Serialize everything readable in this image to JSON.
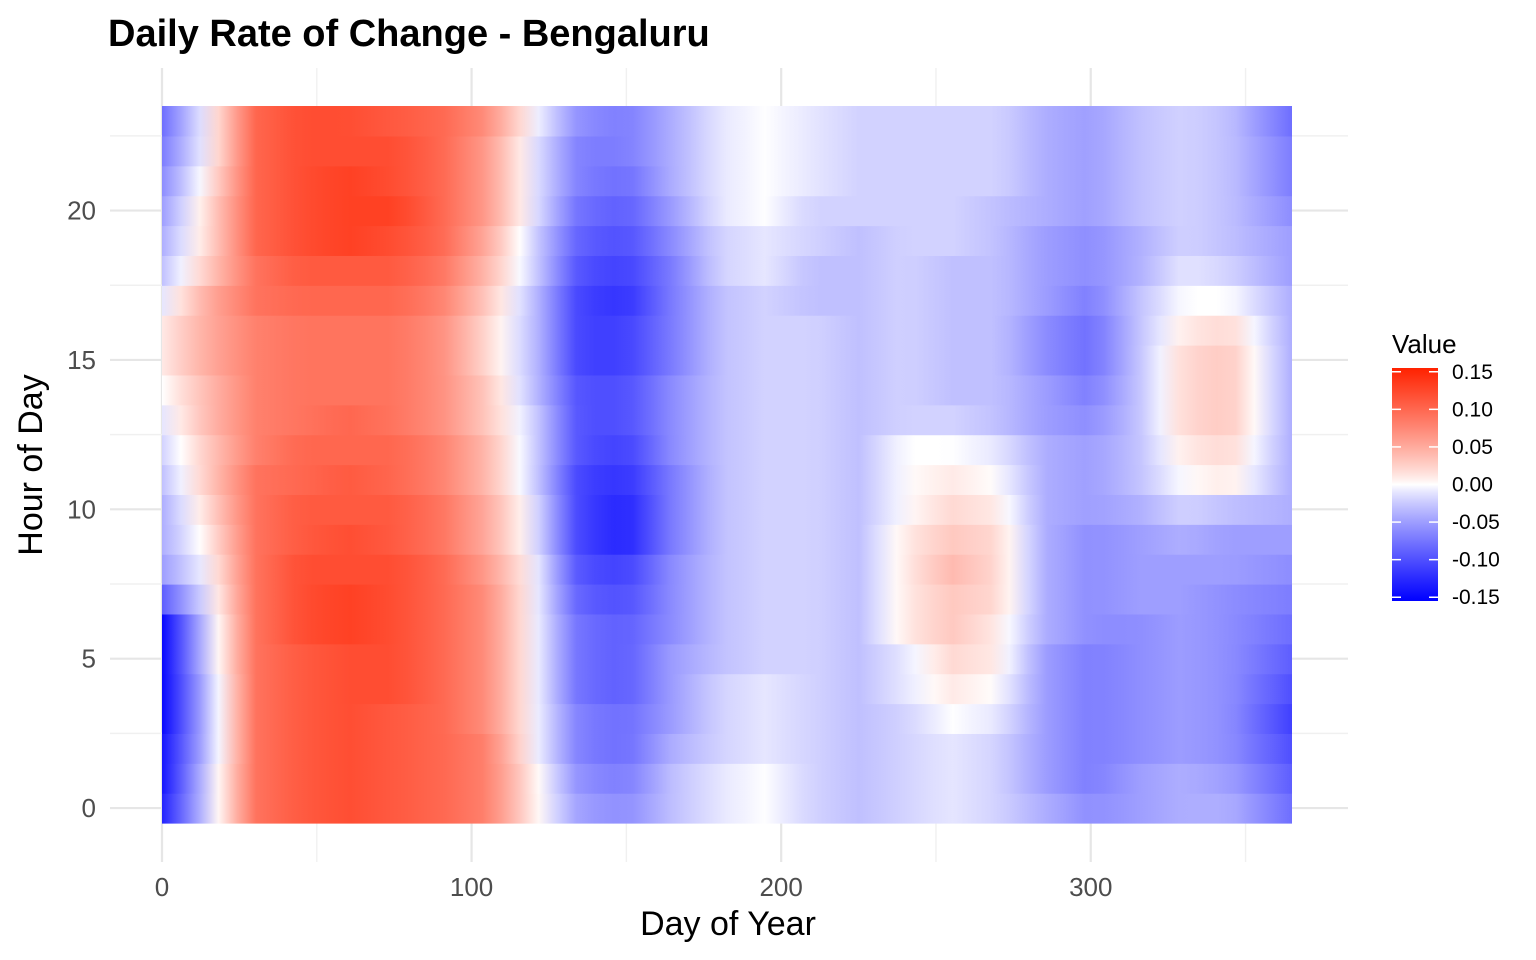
{
  "chart_data": {
    "type": "heatmap",
    "title": "Daily Rate of Change - Bengaluru",
    "xlabel": "Day of Year",
    "ylabel": "Hour of Day",
    "xlim": [
      0,
      365
    ],
    "ylim": [
      0,
      23
    ],
    "x_ticks": [
      "0",
      "100",
      "200",
      "300"
    ],
    "x_tick_values": [
      0,
      100,
      200,
      300
    ],
    "y_ticks": [
      "0",
      "5",
      "10",
      "15",
      "20"
    ],
    "y_tick_values": [
      0,
      5,
      10,
      15,
      20
    ],
    "grid": true,
    "hours": [
      0,
      1,
      2,
      3,
      4,
      5,
      6,
      7,
      8,
      9,
      10,
      11,
      12,
      13,
      14,
      15,
      16,
      17,
      18,
      19,
      20,
      21,
      22,
      23
    ],
    "day_step": 15,
    "days": [
      0,
      15,
      30,
      45,
      60,
      75,
      90,
      105,
      120,
      135,
      150,
      165,
      180,
      195,
      210,
      225,
      240,
      255,
      270,
      285,
      300,
      315,
      330,
      345,
      365
    ],
    "values": [
      [
        -0.13,
        -0.02,
        0.09,
        0.11,
        0.12,
        0.11,
        0.1,
        0.08,
        0.01,
        -0.05,
        -0.06,
        -0.03,
        -0.01,
        0.0,
        -0.02,
        -0.03,
        -0.02,
        -0.01,
        -0.02,
        -0.04,
        -0.06,
        -0.05,
        -0.04,
        -0.04,
        -0.08
      ],
      [
        -0.14,
        -0.02,
        0.09,
        0.11,
        0.12,
        0.11,
        0.1,
        0.08,
        0.01,
        -0.06,
        -0.07,
        -0.03,
        -0.01,
        0.0,
        -0.02,
        -0.03,
        -0.02,
        -0.01,
        -0.02,
        -0.05,
        -0.07,
        -0.05,
        -0.04,
        -0.05,
        -0.09
      ],
      [
        -0.14,
        -0.03,
        0.09,
        0.11,
        0.12,
        0.11,
        0.1,
        0.08,
        0.0,
        -0.07,
        -0.08,
        -0.04,
        -0.02,
        -0.01,
        -0.02,
        -0.03,
        -0.02,
        -0.01,
        -0.02,
        -0.05,
        -0.07,
        -0.06,
        -0.05,
        -0.06,
        -0.1
      ],
      [
        -0.15,
        -0.03,
        0.09,
        0.11,
        0.12,
        0.11,
        0.1,
        0.07,
        0.0,
        -0.07,
        -0.08,
        -0.05,
        -0.02,
        -0.01,
        -0.02,
        -0.03,
        -0.02,
        0.0,
        -0.01,
        -0.05,
        -0.07,
        -0.06,
        -0.05,
        -0.06,
        -0.11
      ],
      [
        -0.15,
        -0.03,
        0.09,
        0.11,
        0.12,
        0.12,
        0.1,
        0.07,
        0.0,
        -0.08,
        -0.09,
        -0.05,
        -0.02,
        -0.01,
        -0.02,
        -0.03,
        -0.01,
        0.01,
        0.0,
        -0.05,
        -0.07,
        -0.06,
        -0.05,
        -0.06,
        -0.1
      ],
      [
        -0.15,
        -0.02,
        0.09,
        0.11,
        0.12,
        0.12,
        0.1,
        0.07,
        0.0,
        -0.08,
        -0.09,
        -0.05,
        -0.03,
        -0.02,
        -0.02,
        -0.03,
        -0.01,
        0.02,
        0.01,
        -0.05,
        -0.07,
        -0.06,
        -0.05,
        -0.06,
        -0.09
      ],
      [
        -0.15,
        -0.02,
        0.09,
        0.12,
        0.13,
        0.12,
        0.1,
        0.07,
        0.0,
        -0.08,
        -0.09,
        -0.06,
        -0.03,
        -0.02,
        -0.02,
        -0.03,
        0.01,
        0.03,
        0.01,
        -0.04,
        -0.06,
        -0.06,
        -0.05,
        -0.06,
        -0.08
      ],
      [
        -0.09,
        -0.01,
        0.09,
        0.12,
        0.13,
        0.12,
        0.1,
        0.07,
        0.0,
        -0.09,
        -0.1,
        -0.06,
        -0.03,
        -0.02,
        -0.02,
        -0.03,
        0.01,
        0.03,
        0.02,
        -0.04,
        -0.06,
        -0.05,
        -0.05,
        -0.06,
        -0.07
      ],
      [
        -0.05,
        0.0,
        0.09,
        0.12,
        0.12,
        0.12,
        0.1,
        0.06,
        0.0,
        -0.1,
        -0.11,
        -0.06,
        -0.03,
        -0.02,
        -0.02,
        -0.03,
        0.01,
        0.04,
        0.02,
        -0.04,
        -0.06,
        -0.05,
        -0.05,
        -0.05,
        -0.06
      ],
      [
        -0.04,
        0.01,
        0.09,
        0.11,
        0.12,
        0.11,
        0.09,
        0.05,
        -0.01,
        -0.11,
        -0.13,
        -0.07,
        -0.03,
        -0.02,
        -0.02,
        -0.03,
        0.01,
        0.03,
        0.02,
        -0.04,
        -0.06,
        -0.05,
        -0.04,
        -0.05,
        -0.05
      ],
      [
        -0.04,
        0.02,
        0.09,
        0.11,
        0.11,
        0.11,
        0.09,
        0.05,
        -0.01,
        -0.11,
        -0.13,
        -0.07,
        -0.03,
        -0.02,
        -0.02,
        -0.03,
        0.0,
        0.02,
        0.01,
        -0.04,
        -0.05,
        -0.04,
        -0.02,
        -0.03,
        -0.04
      ],
      [
        -0.03,
        0.03,
        0.09,
        0.1,
        0.11,
        0.1,
        0.08,
        0.04,
        -0.02,
        -0.11,
        -0.12,
        -0.07,
        -0.03,
        -0.02,
        -0.02,
        -0.03,
        0.0,
        0.01,
        0.0,
        -0.04,
        -0.05,
        -0.03,
        0.0,
        0.01,
        -0.04
      ],
      [
        -0.02,
        0.03,
        0.08,
        0.1,
        0.1,
        0.1,
        0.08,
        0.04,
        -0.02,
        -0.1,
        -0.11,
        -0.06,
        -0.03,
        -0.02,
        -0.02,
        -0.03,
        0.0,
        0.0,
        -0.01,
        -0.04,
        -0.05,
        -0.03,
        0.01,
        0.02,
        -0.04
      ],
      [
        -0.01,
        0.04,
        0.08,
        0.09,
        0.1,
        0.09,
        0.07,
        0.03,
        -0.02,
        -0.1,
        -0.1,
        -0.06,
        -0.03,
        -0.02,
        -0.02,
        -0.03,
        -0.02,
        -0.02,
        -0.03,
        -0.05,
        -0.06,
        -0.03,
        0.02,
        0.03,
        -0.04
      ],
      [
        0.0,
        0.04,
        0.08,
        0.09,
        0.09,
        0.09,
        0.07,
        0.03,
        -0.03,
        -0.1,
        -0.1,
        -0.06,
        -0.03,
        -0.02,
        -0.02,
        -0.03,
        -0.02,
        -0.03,
        -0.03,
        -0.05,
        -0.07,
        -0.03,
        0.02,
        0.03,
        -0.04
      ],
      [
        0.01,
        0.05,
        0.08,
        0.09,
        0.09,
        0.09,
        0.07,
        0.02,
        -0.03,
        -0.11,
        -0.11,
        -0.07,
        -0.03,
        -0.02,
        -0.02,
        -0.03,
        -0.02,
        -0.03,
        -0.03,
        -0.06,
        -0.08,
        -0.03,
        0.02,
        0.03,
        -0.04
      ],
      [
        0.01,
        0.05,
        0.08,
        0.09,
        0.09,
        0.09,
        0.07,
        0.02,
        -0.03,
        -0.11,
        -0.11,
        -0.07,
        -0.03,
        -0.02,
        -0.02,
        -0.03,
        -0.02,
        -0.03,
        -0.03,
        -0.06,
        -0.08,
        -0.03,
        0.01,
        0.02,
        -0.04
      ],
      [
        -0.01,
        0.05,
        0.09,
        0.1,
        0.1,
        0.1,
        0.08,
        0.03,
        -0.03,
        -0.11,
        -0.12,
        -0.07,
        -0.03,
        -0.02,
        -0.03,
        -0.03,
        -0.02,
        -0.03,
        -0.03,
        -0.05,
        -0.07,
        -0.03,
        0.0,
        0.0,
        -0.04
      ],
      [
        -0.03,
        0.03,
        0.09,
        0.11,
        0.11,
        0.11,
        0.09,
        0.04,
        -0.02,
        -0.1,
        -0.11,
        -0.07,
        -0.02,
        -0.01,
        -0.03,
        -0.03,
        -0.02,
        -0.03,
        -0.03,
        -0.05,
        -0.06,
        -0.04,
        -0.01,
        -0.02,
        -0.05
      ],
      [
        -0.04,
        0.02,
        0.1,
        0.12,
        0.13,
        0.12,
        0.1,
        0.05,
        -0.02,
        -0.09,
        -0.1,
        -0.06,
        -0.02,
        -0.01,
        -0.02,
        -0.03,
        -0.02,
        -0.02,
        -0.03,
        -0.05,
        -0.06,
        -0.04,
        -0.02,
        -0.03,
        -0.05
      ],
      [
        -0.05,
        0.02,
        0.1,
        0.12,
        0.13,
        0.13,
        0.1,
        0.06,
        -0.01,
        -0.08,
        -0.09,
        -0.05,
        -0.01,
        0.0,
        -0.02,
        -0.02,
        -0.02,
        -0.02,
        -0.03,
        -0.04,
        -0.05,
        -0.03,
        -0.02,
        -0.03,
        -0.06
      ],
      [
        -0.06,
        0.01,
        0.1,
        0.12,
        0.13,
        0.12,
        0.1,
        0.06,
        -0.01,
        -0.07,
        -0.08,
        -0.04,
        -0.01,
        0.0,
        -0.01,
        -0.02,
        -0.02,
        -0.02,
        -0.02,
        -0.04,
        -0.05,
        -0.03,
        -0.02,
        -0.03,
        -0.07
      ],
      [
        -0.07,
        0.0,
        0.1,
        0.12,
        0.12,
        0.12,
        0.1,
        0.06,
        -0.01,
        -0.07,
        -0.07,
        -0.04,
        -0.01,
        0.0,
        -0.01,
        -0.02,
        -0.02,
        -0.02,
        -0.02,
        -0.04,
        -0.05,
        -0.03,
        -0.02,
        -0.03,
        -0.07
      ],
      [
        -0.08,
        0.0,
        0.1,
        0.12,
        0.12,
        0.11,
        0.1,
        0.07,
        0.0,
        -0.06,
        -0.07,
        -0.04,
        -0.01,
        0.0,
        -0.01,
        -0.02,
        -0.02,
        -0.02,
        -0.02,
        -0.04,
        -0.05,
        -0.03,
        -0.02,
        -0.03,
        -0.08
      ]
    ],
    "legend": {
      "title": "Value",
      "placement": "right",
      "breaks": [
        0.15,
        0.1,
        0.05,
        0.0,
        -0.05,
        -0.1,
        -0.15
      ],
      "labels": [
        "0.15",
        "0.10",
        "0.05",
        "0.00",
        "-0.05",
        "-0.10",
        "-0.15"
      ],
      "range": [
        -0.155,
        0.155
      ],
      "low_color": "#0000ff",
      "mid_color": "#ffffff",
      "high_color": "#ff2200"
    }
  }
}
